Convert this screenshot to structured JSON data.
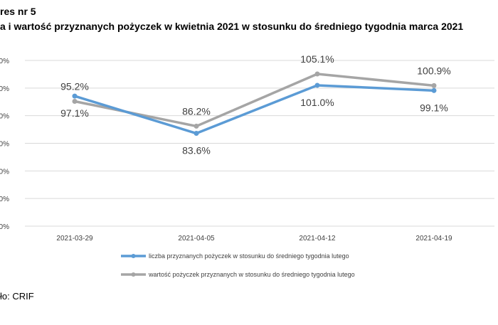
{
  "header": {
    "line1": "res nr 5",
    "line2": "a i wartość przyznanych pożyczek w kwietnia 2021 w stosunku do średniego tygodnia marca 2021"
  },
  "source": "ło: CRIF",
  "chart_data": {
    "type": "line",
    "categories": [
      "2021-03-29",
      "2021-04-05",
      "2021-04-12",
      "2021-04-19"
    ],
    "y_tick_labels": [
      "0%",
      "0%",
      "0%",
      "0%",
      "0%",
      "0%",
      "0%"
    ],
    "ylim": [
      50,
      110
    ],
    "grid": true,
    "legend_position": "bottom",
    "series": [
      {
        "name": "liczba przyznanych pożyczek w stosunku do średniego tygodnia lutego",
        "values": [
          97.1,
          83.6,
          101.0,
          99.1
        ],
        "labels": [
          "97.1%",
          "83.6%",
          "101.0%",
          "99.1%"
        ],
        "color": "#5b9bd5"
      },
      {
        "name": "wartość pożyczek przyznanych w stosunku do średniego tygodnia lutego",
        "values": [
          95.2,
          86.2,
          105.1,
          100.9
        ],
        "labels": [
          "95.2%",
          "86.2%",
          "105.1%",
          "100.9%"
        ],
        "color": "#a5a5a5"
      }
    ]
  }
}
